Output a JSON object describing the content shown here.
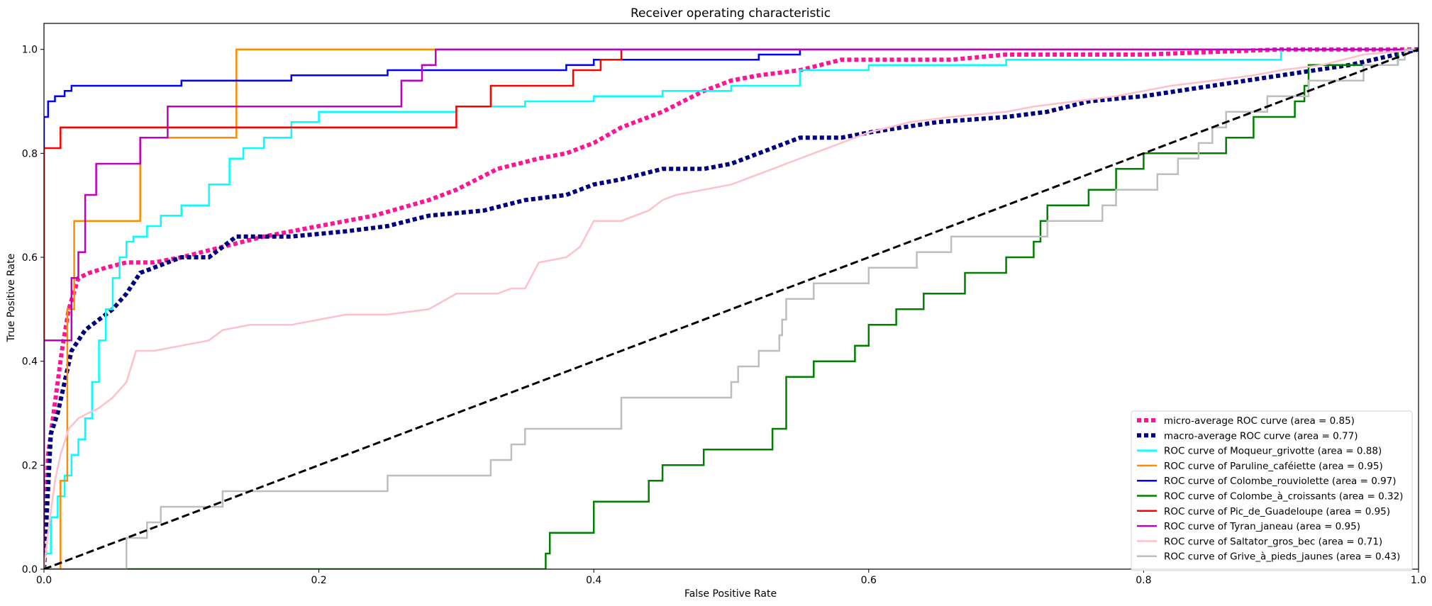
{
  "chart_data": {
    "type": "line",
    "title": "Receiver operating characteristic",
    "xlabel": "False Positive Rate",
    "ylabel": "True Positive Rate",
    "xlim": [
      0,
      1
    ],
    "ylim": [
      0,
      1.05
    ],
    "xticks": [
      "0.0",
      "0.2",
      "0.4",
      "0.6",
      "0.8",
      "1.0"
    ],
    "yticks": [
      "0.0",
      "0.2",
      "0.4",
      "0.6",
      "0.8",
      "1.0"
    ],
    "grid": false,
    "legend_position": "lower right",
    "series": [
      {
        "name": "micro-average ROC curve (area = 0.85)",
        "color": "#ff1493",
        "style": "dotted",
        "x": [
          0,
          0.003,
          0.008,
          0.013,
          0.018,
          0.025,
          0.033,
          0.045,
          0.06,
          0.08,
          0.1,
          0.13,
          0.16,
          0.2,
          0.24,
          0.28,
          0.3,
          0.33,
          0.36,
          0.38,
          0.4,
          0.42,
          0.45,
          0.48,
          0.5,
          0.52,
          0.55,
          0.58,
          0.62,
          0.66,
          0.7,
          0.8,
          0.9,
          1.0
        ],
        "y": [
          0,
          0.22,
          0.32,
          0.42,
          0.5,
          0.56,
          0.57,
          0.58,
          0.59,
          0.59,
          0.6,
          0.62,
          0.64,
          0.66,
          0.68,
          0.71,
          0.73,
          0.77,
          0.79,
          0.8,
          0.82,
          0.85,
          0.88,
          0.92,
          0.94,
          0.95,
          0.96,
          0.98,
          0.98,
          0.98,
          0.99,
          0.99,
          1.0,
          1.0
        ]
      },
      {
        "name": "macro-average ROC curve (area = 0.77)",
        "color": "#000080",
        "style": "dotted",
        "x": [
          0,
          0.005,
          0.01,
          0.015,
          0.02,
          0.03,
          0.04,
          0.05,
          0.06,
          0.07,
          0.08,
          0.09,
          0.1,
          0.12,
          0.14,
          0.18,
          0.22,
          0.25,
          0.28,
          0.32,
          0.35,
          0.38,
          0.4,
          0.42,
          0.45,
          0.48,
          0.5,
          0.52,
          0.55,
          0.58,
          0.6,
          0.65,
          0.7,
          0.73,
          0.76,
          0.8,
          0.85,
          0.9,
          0.95,
          1.0
        ],
        "y": [
          0,
          0.26,
          0.3,
          0.36,
          0.42,
          0.46,
          0.48,
          0.5,
          0.53,
          0.57,
          0.58,
          0.59,
          0.6,
          0.6,
          0.64,
          0.64,
          0.65,
          0.66,
          0.68,
          0.69,
          0.71,
          0.72,
          0.74,
          0.75,
          0.77,
          0.77,
          0.78,
          0.8,
          0.83,
          0.83,
          0.84,
          0.86,
          0.87,
          0.88,
          0.9,
          0.91,
          0.93,
          0.95,
          0.97,
          1.0
        ]
      },
      {
        "name": "ROC curve of Moqueur_grivotte (area = 0.88)",
        "color": "#00ffff",
        "style": "solid",
        "x": [
          0,
          0,
          0.005,
          0.005,
          0.01,
          0.01,
          0.015,
          0.015,
          0.02,
          0.02,
          0.025,
          0.025,
          0.03,
          0.03,
          0.035,
          0.035,
          0.04,
          0.04,
          0.045,
          0.045,
          0.05,
          0.05,
          0.055,
          0.055,
          0.06,
          0.06,
          0.065,
          0.065,
          0.075,
          0.075,
          0.085,
          0.085,
          0.1,
          0.1,
          0.12,
          0.12,
          0.135,
          0.135,
          0.145,
          0.145,
          0.16,
          0.16,
          0.18,
          0.18,
          0.2,
          0.2,
          0.3,
          0.3,
          0.35,
          0.35,
          0.4,
          0.4,
          0.45,
          0.45,
          0.5,
          0.5,
          0.55,
          0.55,
          0.6,
          0.6,
          0.7,
          0.7,
          0.9,
          0.9,
          1.0
        ],
        "y": [
          0,
          0.03,
          0.03,
          0.1,
          0.1,
          0.14,
          0.14,
          0.18,
          0.18,
          0.22,
          0.22,
          0.25,
          0.25,
          0.29,
          0.29,
          0.36,
          0.36,
          0.44,
          0.44,
          0.5,
          0.5,
          0.56,
          0.56,
          0.6,
          0.6,
          0.63,
          0.63,
          0.64,
          0.64,
          0.66,
          0.66,
          0.68,
          0.68,
          0.7,
          0.7,
          0.74,
          0.74,
          0.79,
          0.79,
          0.81,
          0.81,
          0.83,
          0.83,
          0.86,
          0.86,
          0.88,
          0.88,
          0.89,
          0.89,
          0.9,
          0.9,
          0.91,
          0.91,
          0.92,
          0.92,
          0.93,
          0.93,
          0.96,
          0.96,
          0.97,
          0.97,
          0.98,
          0.98,
          1.0,
          1.0
        ]
      },
      {
        "name": "ROC curve of Paruline_caféiette (area = 0.95)",
        "color": "#ff8c00",
        "style": "solid",
        "x": [
          0,
          0.012,
          0.012,
          0.017,
          0.017,
          0.022,
          0.022,
          0.07,
          0.07,
          0.14,
          0.14,
          1.0
        ],
        "y": [
          0,
          0,
          0.17,
          0.17,
          0.5,
          0.5,
          0.67,
          0.67,
          0.83,
          0.83,
          1.0,
          1.0
        ]
      },
      {
        "name": "ROC curve of Colombe_rouviolette (area = 0.97)",
        "color": "#0000ff",
        "style": "solid",
        "x": [
          0,
          0,
          0.003,
          0.003,
          0.008,
          0.008,
          0.015,
          0.015,
          0.02,
          0.02,
          0.1,
          0.1,
          0.18,
          0.18,
          0.25,
          0.25,
          0.3,
          0.3,
          0.38,
          0.38,
          0.4,
          0.4,
          0.42,
          0.42,
          0.45,
          0.45,
          0.52,
          0.52,
          0.55,
          0.55,
          1.0
        ],
        "y": [
          0,
          0.87,
          0.87,
          0.9,
          0.9,
          0.91,
          0.91,
          0.92,
          0.92,
          0.93,
          0.93,
          0.94,
          0.94,
          0.95,
          0.95,
          0.96,
          0.96,
          0.96,
          0.96,
          0.97,
          0.97,
          0.98,
          0.98,
          0.98,
          0.98,
          0.98,
          0.98,
          0.99,
          0.99,
          1.0,
          1.0
        ]
      },
      {
        "name": "ROC curve of Colombe_à_croissants (area = 0.32)",
        "color": "#008000",
        "style": "solid",
        "x": [
          0,
          0.365,
          0.365,
          0.368,
          0.368,
          0.4,
          0.4,
          0.44,
          0.44,
          0.45,
          0.45,
          0.48,
          0.48,
          0.53,
          0.53,
          0.54,
          0.54,
          0.56,
          0.56,
          0.59,
          0.59,
          0.6,
          0.6,
          0.62,
          0.62,
          0.64,
          0.64,
          0.67,
          0.67,
          0.7,
          0.7,
          0.72,
          0.72,
          0.725,
          0.725,
          0.73,
          0.73,
          0.76,
          0.76,
          0.78,
          0.78,
          0.8,
          0.8,
          0.86,
          0.86,
          0.88,
          0.88,
          0.91,
          0.91,
          0.917,
          0.917,
          0.92,
          0.92,
          0.95,
          0.95,
          0.97,
          0.97,
          0.985,
          0.985,
          1.0,
          1.0
        ],
        "y": [
          0,
          0,
          0.03,
          0.03,
          0.07,
          0.07,
          0.13,
          0.13,
          0.17,
          0.17,
          0.2,
          0.2,
          0.23,
          0.23,
          0.27,
          0.27,
          0.37,
          0.37,
          0.4,
          0.4,
          0.43,
          0.43,
          0.47,
          0.47,
          0.5,
          0.5,
          0.53,
          0.53,
          0.57,
          0.57,
          0.6,
          0.6,
          0.63,
          0.63,
          0.67,
          0.67,
          0.7,
          0.7,
          0.73,
          0.73,
          0.77,
          0.77,
          0.8,
          0.8,
          0.83,
          0.83,
          0.87,
          0.87,
          0.9,
          0.9,
          0.93,
          0.93,
          0.97,
          0.97,
          0.97,
          0.97,
          0.97,
          0.97,
          1.0,
          1.0,
          1.0
        ]
      },
      {
        "name": "ROC curve of Pic_de_Guadeloupe (area = 0.95)",
        "color": "#ff0000",
        "style": "solid",
        "x": [
          0,
          0,
          0.012,
          0.012,
          0.3,
          0.3,
          0.325,
          0.325,
          0.385,
          0.385,
          0.405,
          0.405,
          0.42,
          0.42,
          1.0
        ],
        "y": [
          0,
          0.81,
          0.81,
          0.85,
          0.85,
          0.89,
          0.89,
          0.93,
          0.93,
          0.96,
          0.96,
          0.98,
          0.98,
          1.0,
          1.0
        ]
      },
      {
        "name": "ROC curve of Tyran_janeau (area = 0.95)",
        "color": "#bf00bf",
        "style": "solid",
        "x": [
          0,
          0,
          0.02,
          0.02,
          0.025,
          0.025,
          0.03,
          0.03,
          0.038,
          0.038,
          0.055,
          0.055,
          0.07,
          0.07,
          0.09,
          0.09,
          0.12,
          0.12,
          0.26,
          0.26,
          0.275,
          0.275,
          0.285,
          0.285,
          1.0
        ],
        "y": [
          0,
          0.44,
          0.44,
          0.56,
          0.56,
          0.61,
          0.61,
          0.72,
          0.72,
          0.78,
          0.78,
          0.78,
          0.78,
          0.83,
          0.83,
          0.89,
          0.89,
          0.89,
          0.89,
          0.94,
          0.94,
          0.97,
          0.97,
          1.0,
          1.0
        ]
      },
      {
        "name": "ROC curve of Saltator_gros_bec (area = 0.71)",
        "color": "#ffc0cb",
        "style": "solid",
        "x": [
          0,
          0.003,
          0.008,
          0.012,
          0.018,
          0.025,
          0.032,
          0.04,
          0.05,
          0.06,
          0.067,
          0.08,
          0.1,
          0.12,
          0.13,
          0.15,
          0.18,
          0.2,
          0.22,
          0.25,
          0.28,
          0.3,
          0.33,
          0.34,
          0.35,
          0.36,
          0.38,
          0.39,
          0.4,
          0.42,
          0.44,
          0.45,
          0.46,
          0.48,
          0.5,
          0.52,
          0.54,
          0.55,
          0.56,
          0.58,
          0.6,
          0.63,
          0.66,
          0.7,
          0.72,
          0.75,
          0.78,
          0.8,
          0.82,
          0.85,
          0.88,
          0.9,
          0.93,
          0.96,
          1.0
        ],
        "y": [
          0,
          0.07,
          0.17,
          0.22,
          0.27,
          0.29,
          0.3,
          0.31,
          0.33,
          0.36,
          0.42,
          0.42,
          0.43,
          0.44,
          0.46,
          0.47,
          0.47,
          0.48,
          0.49,
          0.49,
          0.5,
          0.53,
          0.53,
          0.54,
          0.54,
          0.59,
          0.6,
          0.62,
          0.67,
          0.67,
          0.69,
          0.71,
          0.72,
          0.73,
          0.74,
          0.76,
          0.78,
          0.79,
          0.8,
          0.82,
          0.84,
          0.86,
          0.87,
          0.88,
          0.89,
          0.9,
          0.91,
          0.92,
          0.93,
          0.94,
          0.95,
          0.96,
          0.97,
          0.99,
          1.0
        ]
      },
      {
        "name": "ROC curve of Grive_à_pieds_jaunes (area = 0.43)",
        "color": "#bebebe",
        "style": "solid",
        "x": [
          0,
          0.06,
          0.06,
          0.075,
          0.075,
          0.085,
          0.085,
          0.13,
          0.13,
          0.25,
          0.25,
          0.325,
          0.325,
          0.34,
          0.34,
          0.35,
          0.35,
          0.42,
          0.42,
          0.5,
          0.5,
          0.505,
          0.505,
          0.52,
          0.52,
          0.535,
          0.535,
          0.537,
          0.537,
          0.54,
          0.54,
          0.56,
          0.56,
          0.6,
          0.6,
          0.635,
          0.635,
          0.66,
          0.66,
          0.73,
          0.73,
          0.77,
          0.77,
          0.78,
          0.78,
          0.81,
          0.81,
          0.825,
          0.825,
          0.84,
          0.84,
          0.85,
          0.85,
          0.86,
          0.86,
          0.89,
          0.89,
          0.92,
          0.92,
          0.95,
          0.95,
          0.96,
          0.96,
          0.985,
          0.985,
          0.99,
          0.99,
          1.0
        ],
        "y": [
          0,
          0,
          0.06,
          0.06,
          0.09,
          0.09,
          0.12,
          0.12,
          0.15,
          0.15,
          0.18,
          0.18,
          0.21,
          0.21,
          0.24,
          0.24,
          0.27,
          0.27,
          0.33,
          0.33,
          0.36,
          0.36,
          0.39,
          0.39,
          0.42,
          0.42,
          0.45,
          0.45,
          0.48,
          0.48,
          0.52,
          0.52,
          0.55,
          0.55,
          0.58,
          0.58,
          0.61,
          0.61,
          0.64,
          0.64,
          0.67,
          0.67,
          0.7,
          0.7,
          0.73,
          0.73,
          0.76,
          0.76,
          0.79,
          0.79,
          0.82,
          0.82,
          0.85,
          0.85,
          0.88,
          0.88,
          0.91,
          0.91,
          0.94,
          0.94,
          0.94,
          0.94,
          0.97,
          0.97,
          0.98,
          0.98,
          1.0,
          1.0
        ]
      },
      {
        "name": "",
        "color": "#000000",
        "style": "dashed",
        "x": [
          0,
          1
        ],
        "y": [
          0,
          1
        ]
      }
    ]
  }
}
